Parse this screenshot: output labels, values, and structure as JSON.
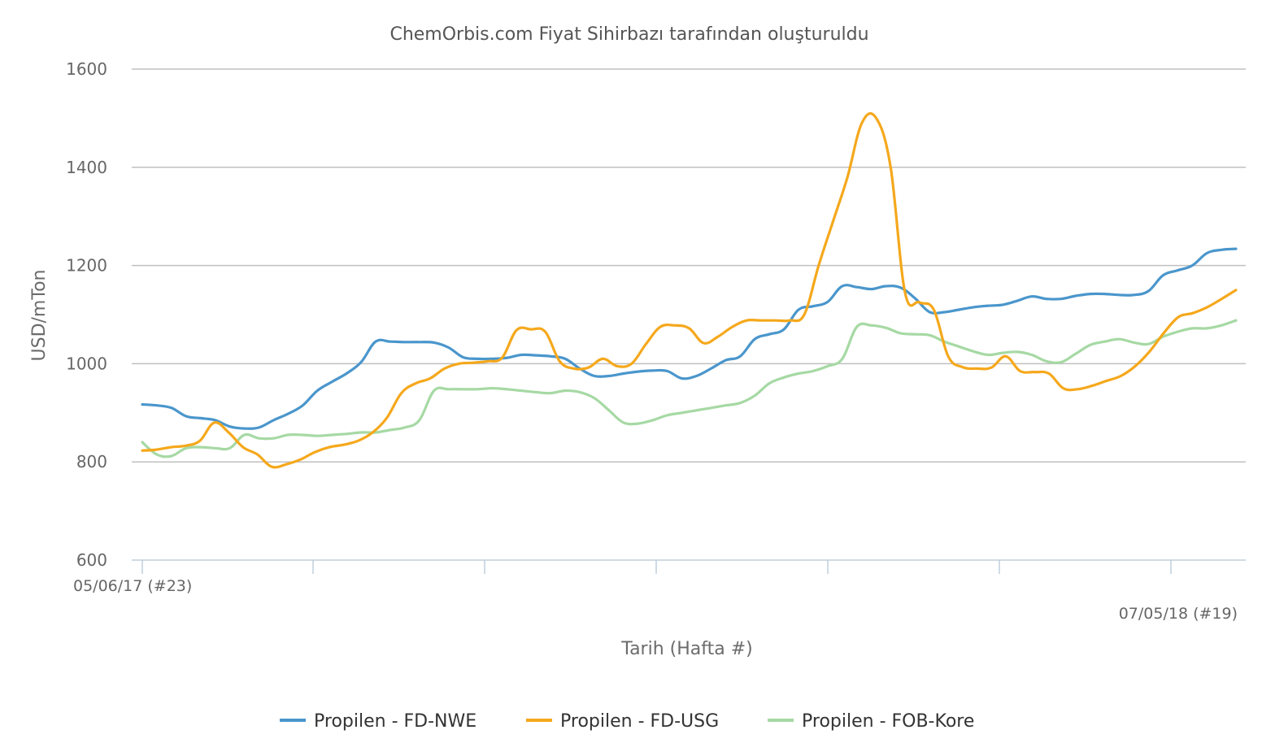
{
  "chart_data": {
    "type": "line",
    "title": "ChemOrbis.com Fiyat Sihirbazı tarafından oluşturuldu",
    "ylabel": "USD/mTon",
    "xlabel": "Tarih (Hafta #)",
    "ylim": [
      600,
      1600
    ],
    "yticks": [
      600,
      800,
      1000,
      1200,
      1400,
      1600
    ],
    "x_start_label": "05/06/17 (#23)",
    "x_end_label": "07/05/18 (#19)",
    "grid": true,
    "legend_position": "bottom",
    "series": [
      {
        "name": "Propilen - FD-NWE",
        "color": "#4a96cc",
        "values": [
          917,
          915,
          910,
          893,
          889,
          885,
          872,
          868,
          870,
          885,
          898,
          915,
          945,
          963,
          980,
          1003,
          1045,
          1045,
          1044,
          1044,
          1043,
          1033,
          1013,
          1010,
          1010,
          1012,
          1018,
          1017,
          1015,
          1010,
          990,
          975,
          975,
          980,
          984,
          986,
          985,
          970,
          975,
          990,
          1007,
          1015,
          1050,
          1060,
          1070,
          1110,
          1117,
          1126,
          1158,
          1156,
          1152,
          1158,
          1155,
          1133,
          1105,
          1105,
          1110,
          1115,
          1118,
          1120,
          1128,
          1137,
          1132,
          1132,
          1138,
          1142,
          1142,
          1140,
          1140,
          1148,
          1180,
          1190,
          1200,
          1225,
          1232,
          1234
        ]
      },
      {
        "name": "Propilen - FD-USG",
        "color": "#f5a81c",
        "values": [
          823,
          825,
          830,
          833,
          843,
          880,
          860,
          830,
          815,
          790,
          795,
          805,
          820,
          830,
          835,
          843,
          860,
          890,
          940,
          960,
          970,
          990,
          1000,
          1002,
          1005,
          1012,
          1068,
          1070,
          1065,
          1005,
          990,
          992,
          1010,
          995,
          1000,
          1040,
          1075,
          1078,
          1072,
          1042,
          1055,
          1075,
          1088,
          1088,
          1088,
          1088,
          1100,
          1200,
          1290,
          1380,
          1490,
          1500,
          1400,
          1145,
          1125,
          1110,
          1015,
          993,
          990,
          992,
          1015,
          985,
          983,
          980,
          950,
          948,
          955,
          965,
          975,
          995,
          1025,
          1063,
          1095,
          1103,
          1115,
          1132,
          1150
        ]
      },
      {
        "name": "Propilen - FOB-Kore",
        "color": "#a6d9a4",
        "values": [
          840,
          815,
          812,
          828,
          830,
          828,
          828,
          855,
          848,
          848,
          855,
          855,
          853,
          855,
          857,
          860,
          860,
          865,
          870,
          885,
          945,
          948,
          948,
          948,
          950,
          948,
          945,
          942,
          940,
          945,
          942,
          930,
          905,
          880,
          878,
          885,
          895,
          900,
          905,
          910,
          915,
          920,
          935,
          960,
          972,
          980,
          985,
          995,
          1010,
          1075,
          1078,
          1073,
          1062,
          1060,
          1058,
          1045,
          1035,
          1025,
          1018,
          1022,
          1024,
          1018,
          1005,
          1003,
          1020,
          1038,
          1045,
          1050,
          1043,
          1040,
          1055,
          1065,
          1072,
          1072,
          1078,
          1088
        ]
      }
    ]
  }
}
